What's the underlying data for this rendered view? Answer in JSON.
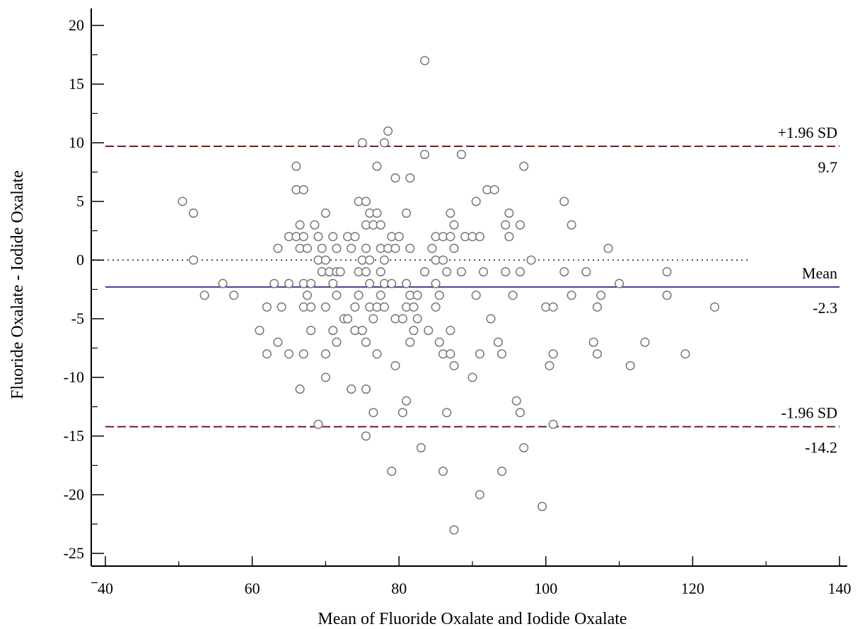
{
  "chart_data": {
    "type": "scatter",
    "title": "",
    "xlabel": "Mean of Fluoride Oxalate and Iodide Oxalate",
    "ylabel": "Fluoride Oxalate - Iodide Oxalate",
    "xlim": [
      40,
      140
    ],
    "ylim": [
      -26,
      21
    ],
    "xticks": [
      40,
      60,
      80,
      100,
      120,
      140
    ],
    "yticks": [
      20,
      15,
      10,
      5,
      0,
      -5,
      -10,
      -15,
      -20,
      -25
    ],
    "x_tick_labels": [
      "40",
      "60",
      "80",
      "100",
      "120",
      "140"
    ],
    "y_tick_labels": [
      "20",
      "15",
      "10",
      "5",
      "0",
      "-5",
      "-10",
      "-15",
      "-20",
      "-25"
    ],
    "grid": false,
    "zero_line": {
      "y": 0,
      "x_start": 40,
      "x_end": 127.5,
      "style": "dotted",
      "color": "#555555"
    },
    "reference_lines": [
      {
        "y": 9.7,
        "style": "dashed",
        "color": "#7a1a1a",
        "label_top": "+1.96 SD",
        "label_bottom": "9.7"
      },
      {
        "y": -2.3,
        "style": "solid",
        "color": "#3d3d8f",
        "label_top": "Mean",
        "label_bottom": "-2.3"
      },
      {
        "y": -14.2,
        "style": "dashed",
        "color": "#7a1a1a",
        "label_top": "-1.96 SD",
        "label_bottom": "-14.2"
      }
    ],
    "marker_color": "#777777",
    "points": [
      [
        50.5,
        5
      ],
      [
        52,
        4
      ],
      [
        52,
        0
      ],
      [
        53.5,
        -3
      ],
      [
        56,
        -2
      ],
      [
        57.5,
        -3
      ],
      [
        61,
        -6
      ],
      [
        62,
        -4
      ],
      [
        62,
        -8
      ],
      [
        63,
        -2
      ],
      [
        63.5,
        1
      ],
      [
        63.5,
        -7
      ],
      [
        64,
        -4
      ],
      [
        65,
        2
      ],
      [
        65,
        -2
      ],
      [
        65,
        -8
      ],
      [
        66,
        8
      ],
      [
        66,
        6
      ],
      [
        66,
        2
      ],
      [
        66.5,
        3
      ],
      [
        66.5,
        1
      ],
      [
        67,
        6
      ],
      [
        67,
        2
      ],
      [
        67,
        -2
      ],
      [
        67,
        -4
      ],
      [
        67,
        -8
      ],
      [
        66.5,
        -11
      ],
      [
        67.5,
        -3
      ],
      [
        67.5,
        1
      ],
      [
        68,
        -2
      ],
      [
        68,
        -4
      ],
      [
        68,
        -6
      ],
      [
        68.5,
        3
      ],
      [
        69,
        2
      ],
      [
        69,
        0
      ],
      [
        69,
        -14
      ],
      [
        69.5,
        1
      ],
      [
        69.5,
        -1
      ],
      [
        70,
        4
      ],
      [
        70,
        0
      ],
      [
        70,
        -4
      ],
      [
        70,
        -8
      ],
      [
        70,
        -10
      ],
      [
        70.5,
        -1
      ],
      [
        71,
        2
      ],
      [
        71,
        -2
      ],
      [
        71,
        -6
      ],
      [
        71.5,
        1
      ],
      [
        71.5,
        -1
      ],
      [
        71.5,
        -3
      ],
      [
        71.5,
        -7
      ],
      [
        72,
        -1
      ],
      [
        72.5,
        -5
      ],
      [
        73,
        2
      ],
      [
        73,
        -5
      ],
      [
        73.5,
        1
      ],
      [
        73.5,
        -11
      ],
      [
        74,
        2
      ],
      [
        74,
        -4
      ],
      [
        74,
        -6
      ],
      [
        74.5,
        5
      ],
      [
        74.5,
        -1
      ],
      [
        74.5,
        -3
      ],
      [
        75,
        10
      ],
      [
        75,
        0
      ],
      [
        75,
        -6
      ],
      [
        75.5,
        5
      ],
      [
        75.5,
        3
      ],
      [
        75.5,
        1
      ],
      [
        75.5,
        -1
      ],
      [
        75.5,
        -7
      ],
      [
        75.5,
        -11
      ],
      [
        75.5,
        -15
      ],
      [
        76,
        4
      ],
      [
        76,
        0
      ],
      [
        76,
        -2
      ],
      [
        76,
        -4
      ],
      [
        76.5,
        3
      ],
      [
        76.5,
        -5
      ],
      [
        76.5,
        -13
      ],
      [
        77,
        8
      ],
      [
        77,
        4
      ],
      [
        77,
        -4
      ],
      [
        77,
        -8
      ],
      [
        77.5,
        3
      ],
      [
        77.5,
        1
      ],
      [
        77.5,
        -1
      ],
      [
        77.5,
        -3
      ],
      [
        78,
        10
      ],
      [
        78,
        0
      ],
      [
        78,
        -2
      ],
      [
        78,
        -4
      ],
      [
        78.5,
        11
      ],
      [
        78.5,
        1
      ],
      [
        79,
        2
      ],
      [
        79,
        -2
      ],
      [
        79,
        -18
      ],
      [
        79.5,
        7
      ],
      [
        79.5,
        1
      ],
      [
        79.5,
        -5
      ],
      [
        79.5,
        -9
      ],
      [
        80,
        2
      ],
      [
        80.5,
        -5
      ],
      [
        80.5,
        -13
      ],
      [
        81,
        4
      ],
      [
        81,
        -2
      ],
      [
        81,
        -4
      ],
      [
        81,
        -12
      ],
      [
        81.5,
        7
      ],
      [
        81.5,
        1
      ],
      [
        81.5,
        -3
      ],
      [
        81.5,
        -7
      ],
      [
        82,
        -4
      ],
      [
        82,
        -6
      ],
      [
        82.5,
        -3
      ],
      [
        82.5,
        -5
      ],
      [
        83,
        -16
      ],
      [
        83.5,
        17
      ],
      [
        83.5,
        9
      ],
      [
        83.5,
        -1
      ],
      [
        84,
        -6
      ],
      [
        84.5,
        1
      ],
      [
        85,
        2
      ],
      [
        85,
        0
      ],
      [
        85,
        -2
      ],
      [
        85,
        -4
      ],
      [
        85.5,
        -7
      ],
      [
        85.5,
        -3
      ],
      [
        86,
        2
      ],
      [
        86,
        0
      ],
      [
        86,
        -8
      ],
      [
        86,
        -18
      ],
      [
        86.5,
        -1
      ],
      [
        86.5,
        -13
      ],
      [
        87,
        4
      ],
      [
        87,
        2
      ],
      [
        87,
        -6
      ],
      [
        87,
        -8
      ],
      [
        87.5,
        3
      ],
      [
        87.5,
        1
      ],
      [
        87.5,
        -9
      ],
      [
        87.5,
        -23
      ],
      [
        88.5,
        9
      ],
      [
        88.5,
        -1
      ],
      [
        89,
        2
      ],
      [
        90,
        2
      ],
      [
        90,
        -10
      ],
      [
        90.5,
        5
      ],
      [
        90.5,
        -3
      ],
      [
        91,
        2
      ],
      [
        91,
        -8
      ],
      [
        91,
        -20
      ],
      [
        91.5,
        -1
      ],
      [
        92,
        6
      ],
      [
        92.5,
        -5
      ],
      [
        93,
        6
      ],
      [
        93.5,
        -7
      ],
      [
        94,
        -8
      ],
      [
        94,
        -18
      ],
      [
        94.5,
        3
      ],
      [
        94.5,
        -1
      ],
      [
        95,
        4
      ],
      [
        95,
        2
      ],
      [
        95.5,
        -3
      ],
      [
        96,
        -12
      ],
      [
        96.5,
        3
      ],
      [
        96.5,
        -1
      ],
      [
        96.5,
        -13
      ],
      [
        97,
        8
      ],
      [
        97,
        -16
      ],
      [
        98,
        0
      ],
      [
        99.5,
        -21
      ],
      [
        100,
        -4
      ],
      [
        100.5,
        -9
      ],
      [
        101,
        -4
      ],
      [
        101,
        -8
      ],
      [
        101,
        -14
      ],
      [
        102.5,
        5
      ],
      [
        102.5,
        -1
      ],
      [
        103.5,
        3
      ],
      [
        103.5,
        -3
      ],
      [
        105.5,
        -1
      ],
      [
        106.5,
        -7
      ],
      [
        107,
        -4
      ],
      [
        107,
        -8
      ],
      [
        107.5,
        -3
      ],
      [
        108.5,
        1
      ],
      [
        110,
        -2
      ],
      [
        111.5,
        -9
      ],
      [
        113.5,
        -7
      ],
      [
        116.5,
        -1
      ],
      [
        116.5,
        -3
      ],
      [
        119,
        -8
      ],
      [
        123,
        -4
      ]
    ]
  }
}
